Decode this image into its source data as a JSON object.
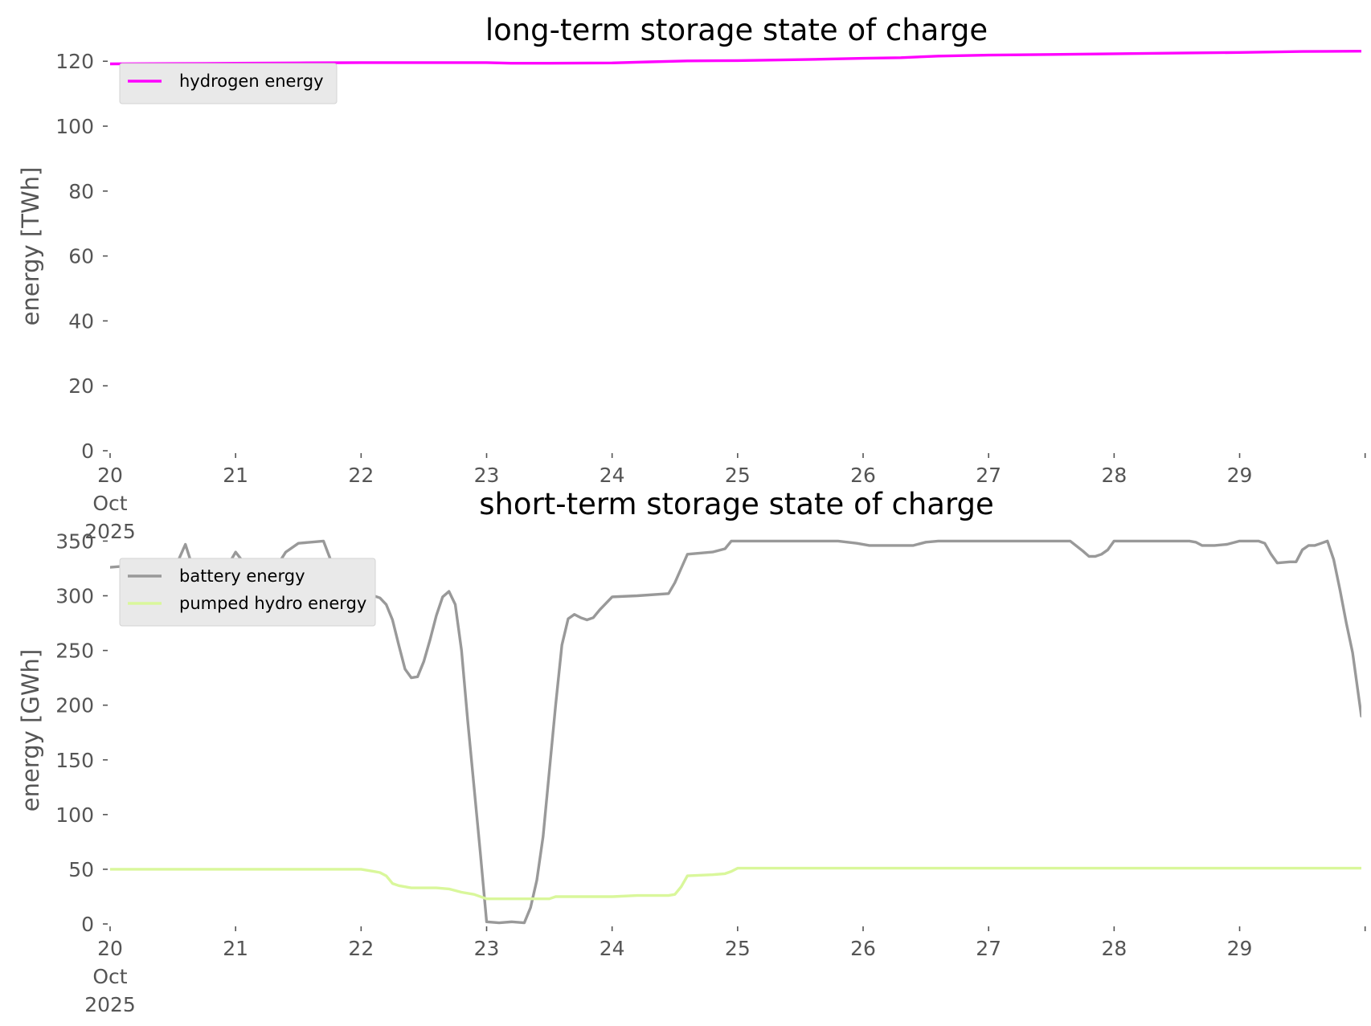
{
  "chart_data": [
    {
      "type": "line",
      "title": "long-term storage state of charge",
      "xlabel": "",
      "ylabel": "energy [TWh]",
      "ylim": [
        0,
        126
      ],
      "yticks": [
        0,
        20,
        40,
        60,
        80,
        100,
        120
      ],
      "xticks": [
        {
          "day": 20,
          "lines": [
            "20",
            "Oct",
            "2025"
          ]
        },
        {
          "day": 21,
          "lines": [
            "21"
          ]
        },
        {
          "day": 22,
          "lines": [
            "22"
          ]
        },
        {
          "day": 23,
          "lines": [
            "23"
          ]
        },
        {
          "day": 24,
          "lines": [
            "24"
          ]
        },
        {
          "day": 25,
          "lines": [
            "25"
          ]
        },
        {
          "day": 26,
          "lines": [
            "26"
          ]
        },
        {
          "day": 27,
          "lines": [
            "27"
          ]
        },
        {
          "day": 28,
          "lines": [
            "28"
          ]
        },
        {
          "day": 29,
          "lines": [
            "29"
          ]
        },
        {
          "day": 30,
          "lines": [
            ""
          ]
        }
      ],
      "xlim": [
        20,
        29.97
      ],
      "grid": false,
      "legend_position": "upper-left",
      "series": [
        {
          "name": "hydrogen energy",
          "color": "#ff00ff",
          "x": [
            20.0,
            20.5,
            21.0,
            21.5,
            22.0,
            22.5,
            23.0,
            23.2,
            23.5,
            24.0,
            24.3,
            24.6,
            25.0,
            25.5,
            26.0,
            26.3,
            26.6,
            27.0,
            27.5,
            28.0,
            28.5,
            29.0,
            29.5,
            29.97
          ],
          "y": [
            119.2,
            119.3,
            119.4,
            119.5,
            119.6,
            119.6,
            119.6,
            119.4,
            119.4,
            119.5,
            119.8,
            120.1,
            120.2,
            120.5,
            120.9,
            121.1,
            121.6,
            121.9,
            122.1,
            122.3,
            122.5,
            122.7,
            123.0,
            123.1
          ]
        }
      ]
    },
    {
      "type": "line",
      "title": "short-term storage state of charge",
      "xlabel": "",
      "ylabel": "energy [GWh]",
      "ylim": [
        0,
        354
      ],
      "yticks": [
        0,
        50,
        100,
        150,
        200,
        250,
        300,
        350
      ],
      "xticks": [
        {
          "day": 20,
          "lines": [
            "20",
            "Oct",
            "2025"
          ]
        },
        {
          "day": 21,
          "lines": [
            "21"
          ]
        },
        {
          "day": 22,
          "lines": [
            "22"
          ]
        },
        {
          "day": 23,
          "lines": [
            "23"
          ]
        },
        {
          "day": 24,
          "lines": [
            "24"
          ]
        },
        {
          "day": 25,
          "lines": [
            "25"
          ]
        },
        {
          "day": 26,
          "lines": [
            "26"
          ]
        },
        {
          "day": 27,
          "lines": [
            "27"
          ]
        },
        {
          "day": 28,
          "lines": [
            "28"
          ]
        },
        {
          "day": 29,
          "lines": [
            "29"
          ]
        },
        {
          "day": 30,
          "lines": [
            ""
          ]
        }
      ],
      "xlim": [
        20,
        29.97
      ],
      "grid": false,
      "legend_position": "upper-left",
      "series": [
        {
          "name": "battery energy",
          "color": "#999999",
          "x": [
            20.0,
            20.1,
            20.2,
            20.25,
            20.3,
            20.4,
            20.5,
            20.55,
            20.6,
            20.7,
            20.8,
            20.9,
            21.0,
            21.1,
            21.2,
            21.3,
            21.4,
            21.5,
            21.6,
            21.7,
            21.75,
            21.8,
            21.9,
            22.0,
            22.1,
            22.15,
            22.2,
            22.25,
            22.3,
            22.35,
            22.4,
            22.45,
            22.5,
            22.55,
            22.6,
            22.65,
            22.7,
            22.75,
            22.8,
            22.85,
            22.9,
            22.95,
            23.0,
            23.1,
            23.2,
            23.3,
            23.35,
            23.4,
            23.45,
            23.5,
            23.55,
            23.6,
            23.65,
            23.7,
            23.75,
            23.8,
            23.85,
            23.9,
            24.0,
            24.2,
            24.45,
            24.5,
            24.55,
            24.6,
            24.8,
            24.9,
            24.95,
            25.0,
            25.5,
            25.8,
            25.95,
            26.05,
            26.4,
            26.5,
            26.6,
            26.7,
            26.8,
            27.0,
            27.5,
            27.65,
            27.75,
            27.8,
            27.85,
            27.9,
            27.95,
            28.0,
            28.2,
            28.6,
            28.65,
            28.7,
            28.8,
            28.9,
            29.0,
            29.1,
            29.15,
            29.2,
            29.25,
            29.3,
            29.4,
            29.45,
            29.5,
            29.55,
            29.6,
            29.65,
            29.7,
            29.75,
            29.8,
            29.85,
            29.9,
            29.97
          ],
          "y": [
            326,
            327,
            328,
            327,
            319,
            325,
            326,
            334,
            347,
            311,
            308,
            320,
            340,
            325,
            318,
            322,
            340,
            348,
            349,
            350,
            335,
            318,
            301,
            300,
            300,
            298,
            292,
            278,
            255,
            233,
            225,
            226,
            240,
            260,
            282,
            299,
            304,
            292,
            250,
            185,
            125,
            65,
            2,
            1,
            2,
            1,
            15,
            40,
            80,
            140,
            200,
            255,
            279,
            283,
            280,
            278,
            280,
            287,
            299,
            300,
            302,
            312,
            325,
            338,
            340,
            343,
            350,
            350,
            350,
            350,
            348,
            346,
            346,
            349,
            350,
            350,
            350,
            350,
            350,
            350,
            341,
            336,
            336,
            338,
            342,
            350,
            350,
            350,
            349,
            346,
            346,
            347,
            350,
            350,
            350,
            348,
            338,
            330,
            331,
            331,
            342,
            346,
            346,
            348,
            350,
            333,
            305,
            275,
            248,
            190
          ]
        },
        {
          "name": "pumped hydro energy",
          "color": "#d9f79b",
          "x": [
            20.0,
            21.0,
            21.9,
            22.0,
            22.1,
            22.15,
            22.2,
            22.25,
            22.3,
            22.35,
            22.4,
            22.5,
            22.6,
            22.7,
            22.8,
            22.9,
            23.0,
            23.5,
            23.55,
            24.0,
            24.2,
            24.45,
            24.5,
            24.55,
            24.6,
            24.8,
            24.9,
            24.95,
            25.0,
            29.97
          ],
          "y": [
            50,
            50,
            50,
            50,
            48,
            47,
            44,
            37,
            35,
            34,
            33,
            33,
            33,
            32,
            29,
            27,
            23,
            23,
            25,
            25,
            26,
            26,
            27,
            34,
            44,
            45,
            46,
            48,
            51,
            51
          ]
        }
      ]
    }
  ]
}
